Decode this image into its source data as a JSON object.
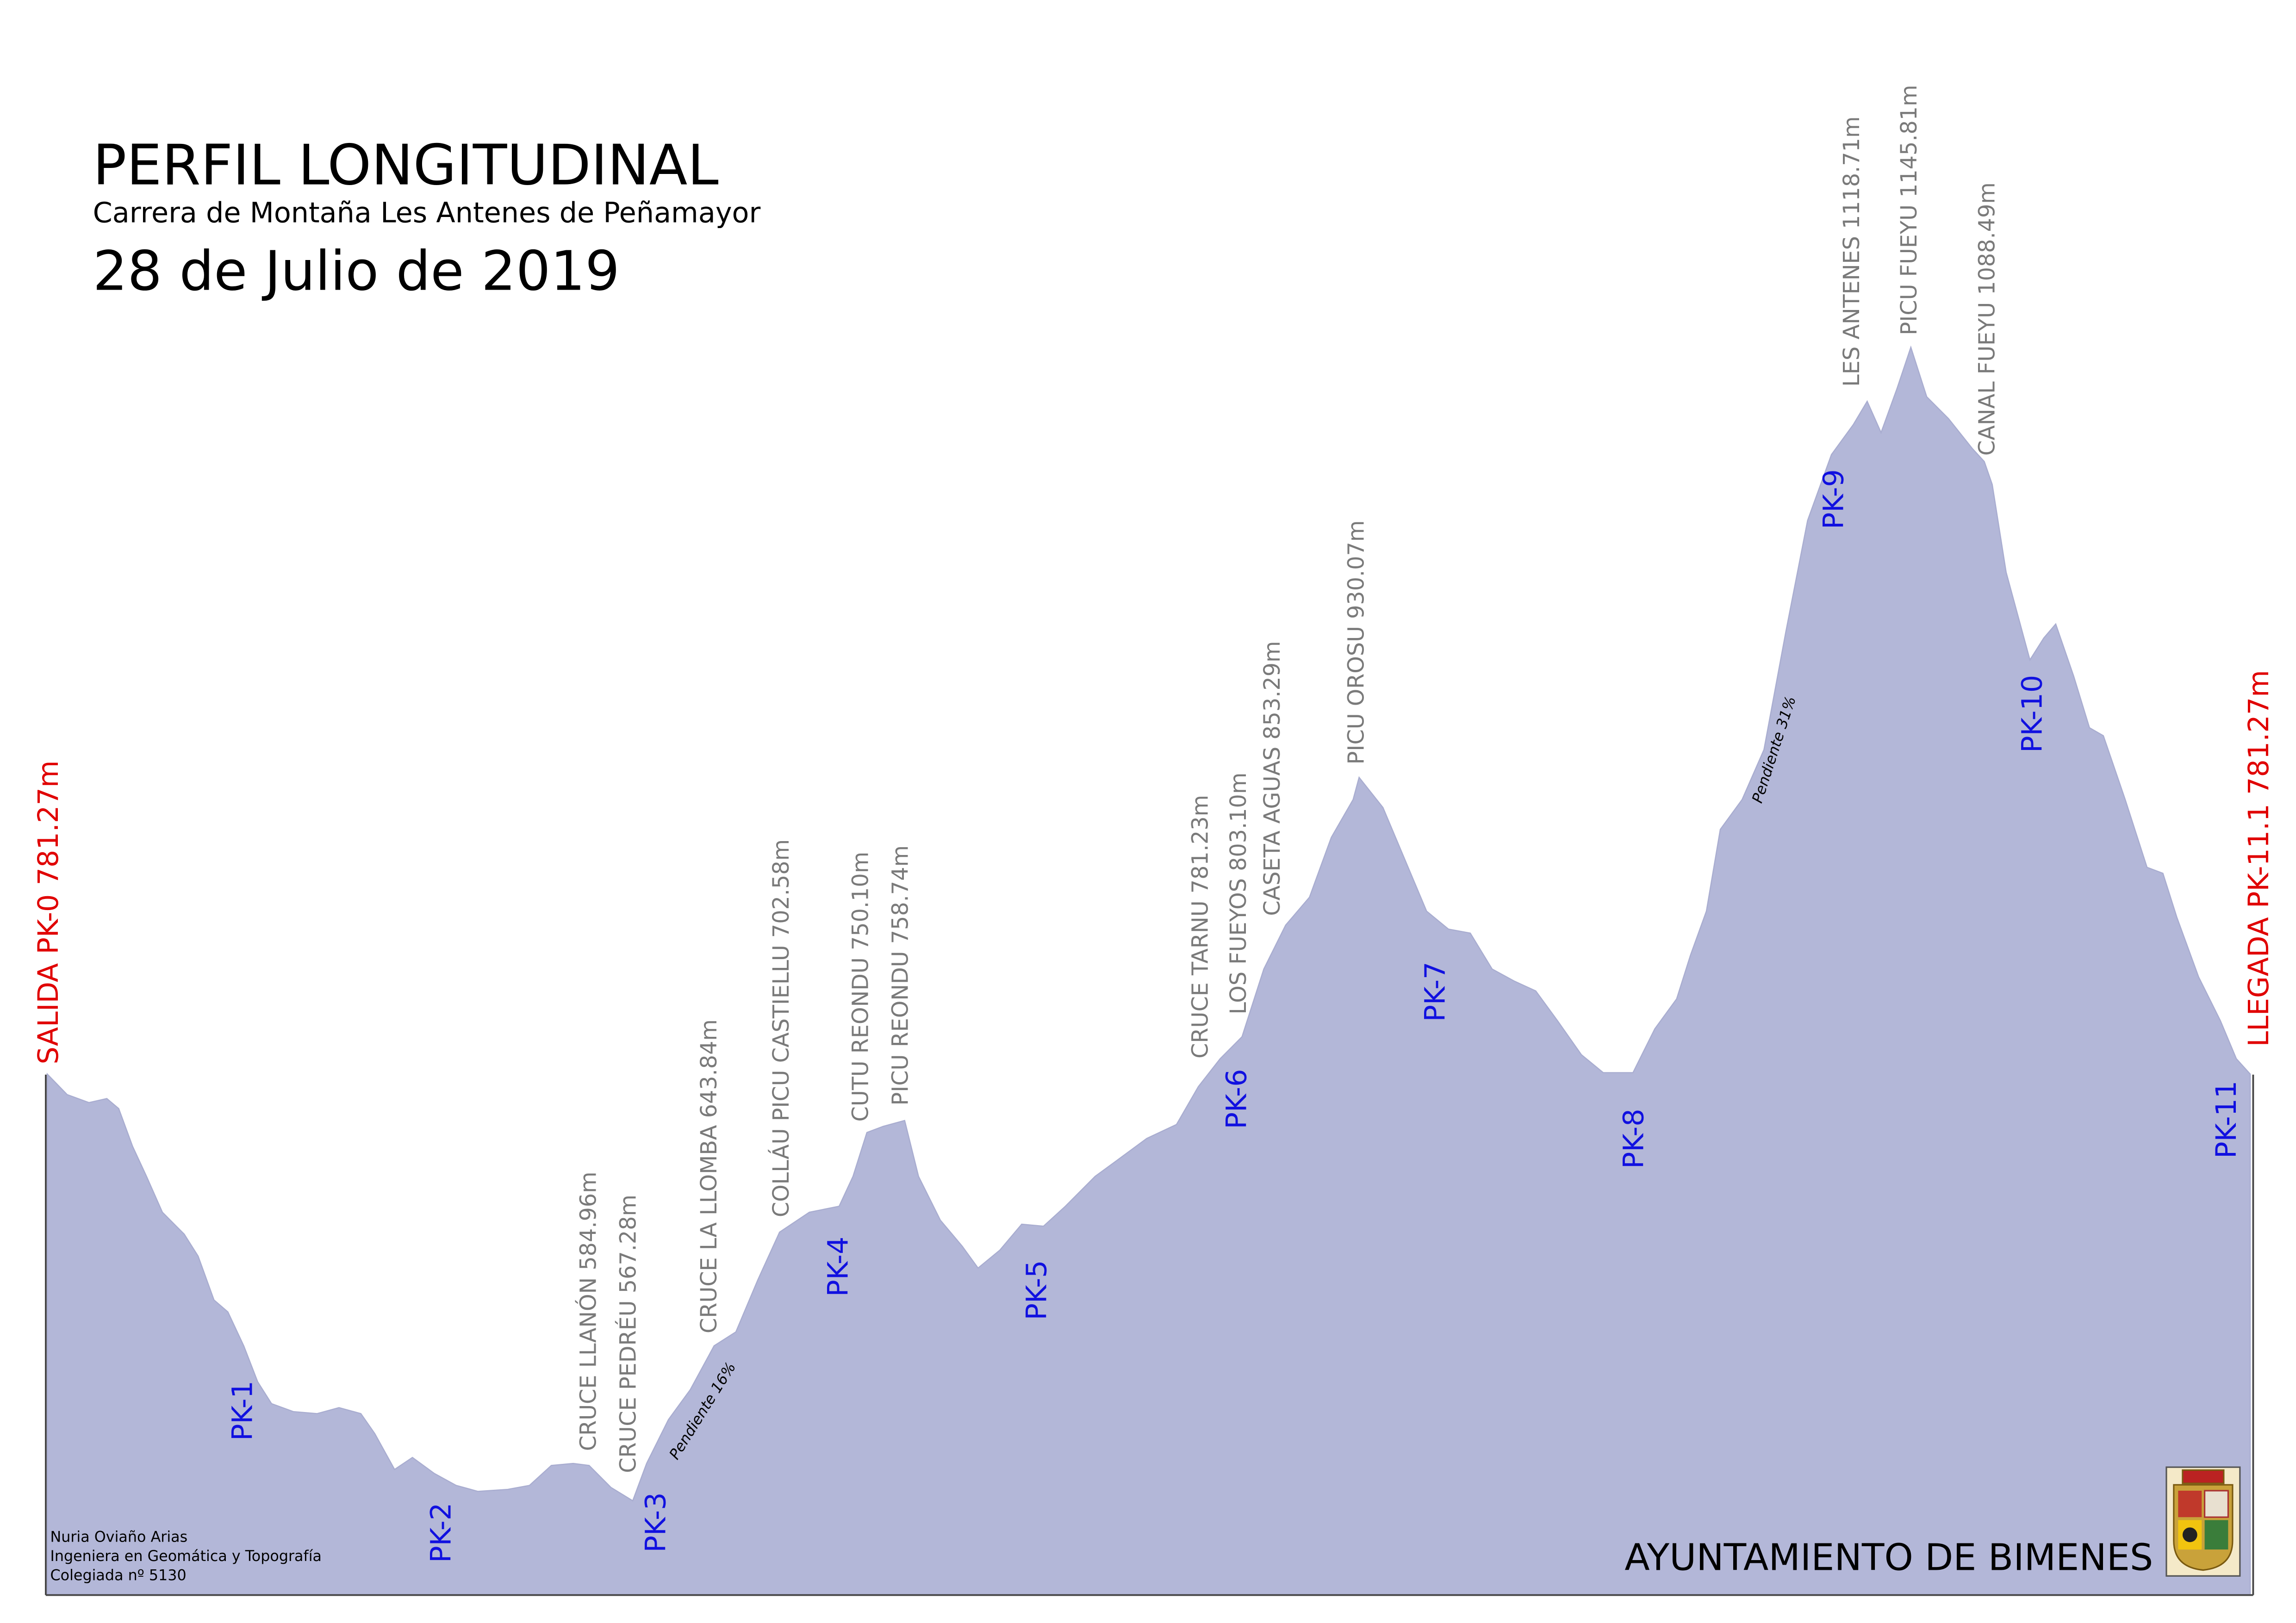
{
  "chart_data": {
    "type": "area",
    "title": "PERFIL LONGITUDINAL",
    "subtitle": "Carrera de Montaña Les Antenes de Peñamayor",
    "date": "28 de Julio de 2019",
    "start_label": "SALIDA PK-0  781.27m",
    "end_label": "LLEGADA PK-11.1 781.27m",
    "peaks": [
      "CRUCE LLANÓN 584.96m",
      "CRUCE PEDRÉU 567.28m",
      "CRUCE LA LLOMBA 643.84m",
      "COLLÁU PICU CASTIELLU 702.58m",
      "CUTU REONDU 750.10m",
      "PICU REONDU 758.74m",
      "CRUCE TARNU 781.23m",
      "LOS FUEYOS 803.10m",
      "CASETA AGUAS 853.29m",
      "PICU OROSU 930.07m",
      "LES ANTENES 1118.71m",
      "PICU FUEYU 1145.81m",
      "CANAL FUEYU 1088.49m"
    ],
    "markers": [
      "PK-1",
      "PK-2",
      "PK-3",
      "PK-4",
      "PK-5",
      "PK-6",
      "PK-7",
      "PK-8",
      "PK-9",
      "PK-10",
      "PK-11"
    ],
    "slopes": [
      "Pendiente 16%",
      "Pendiente 31%"
    ],
    "credits": [
      "Nuria Oviaño Arias",
      "Ingeniera en Geomática y Topografía",
      "Colegiada nº 5130"
    ],
    "organization": "AYUNTAMIENTO DE BIMENES",
    "color": "#b3b7d8",
    "xlim": [
      0,
      11.1
    ],
    "ylim": [
      520,
      1320
    ],
    "x": [
      0,
      0.1,
      0.21,
      0.3,
      0.36,
      0.43,
      0.5,
      0.58,
      0.69,
      0.76,
      0.84,
      0.91,
      0.99,
      1.06,
      1.13,
      1.24,
      1.36,
      1.47,
      1.58,
      1.65,
      1.75,
      1.84,
      1.95,
      2.06,
      2.17,
      2.32,
      2.43,
      2.54,
      2.65,
      2.73,
      2.84,
      2.95,
      3.02,
      3.13,
      3.24,
      3.36,
      3.47,
      3.58,
      3.69,
      3.84,
      3.99,
      4.06,
      4.13,
      4.21,
      4.32,
      4.39,
      4.5,
      4.61,
      4.69,
      4.8,
      4.91,
      5.02,
      5.13,
      5.28,
      5.39,
      5.54,
      5.69,
      5.8,
      5.91,
      6.02,
      6.13,
      6.24,
      6.36,
      6.47,
      6.58,
      6.61,
      6.73,
      6.84,
      6.95,
      7.06,
      7.17,
      7.28,
      7.39,
      7.5,
      7.61,
      7.73,
      7.84,
      7.99,
      8.1,
      8.21,
      8.28,
      8.36,
      8.43,
      8.54,
      8.65,
      8.76,
      8.87,
      8.99,
      9.1,
      9.17,
      9.24,
      9.32,
      9.39,
      9.47,
      9.58,
      9.7,
      9.76,
      9.8,
      9.87,
      9.99,
      10.06,
      10.12,
      10.21,
      10.29,
      10.36,
      10.47,
      10.58,
      10.66,
      10.73,
      10.84,
      10.95,
      11.03,
      11.1
    ],
    "values": [
      781.27,
      771,
      767,
      769,
      764,
      745,
      730,
      712,
      701,
      690,
      668,
      662,
      645,
      627,
      616,
      612,
      611,
      614,
      611,
      601,
      583,
      589,
      581,
      575,
      572,
      573,
      575,
      585,
      586,
      585,
      574,
      567.28,
      586,
      608,
      623,
      645,
      652,
      678,
      702,
      712,
      715,
      730,
      752,
      755,
      758,
      730,
      708,
      695,
      684,
      693,
      706,
      705,
      715,
      730,
      738,
      749,
      756,
      775,
      789,
      800,
      834,
      856,
      870,
      900,
      919,
      930.07,
      915,
      889,
      863,
      854,
      852,
      834,
      828,
      823,
      808,
      791,
      782,
      782,
      804,
      819,
      841,
      863,
      904,
      919,
      944,
      1003,
      1059,
      1092,
      1107,
      1118.71,
      1103,
      1125,
      1145.81,
      1121,
      1110,
      1095,
      1088.49,
      1077,
      1033,
      989,
      1000,
      1007,
      981,
      955,
      951,
      919,
      885,
      882,
      860,
      830,
      808,
      789,
      781.27
    ]
  }
}
